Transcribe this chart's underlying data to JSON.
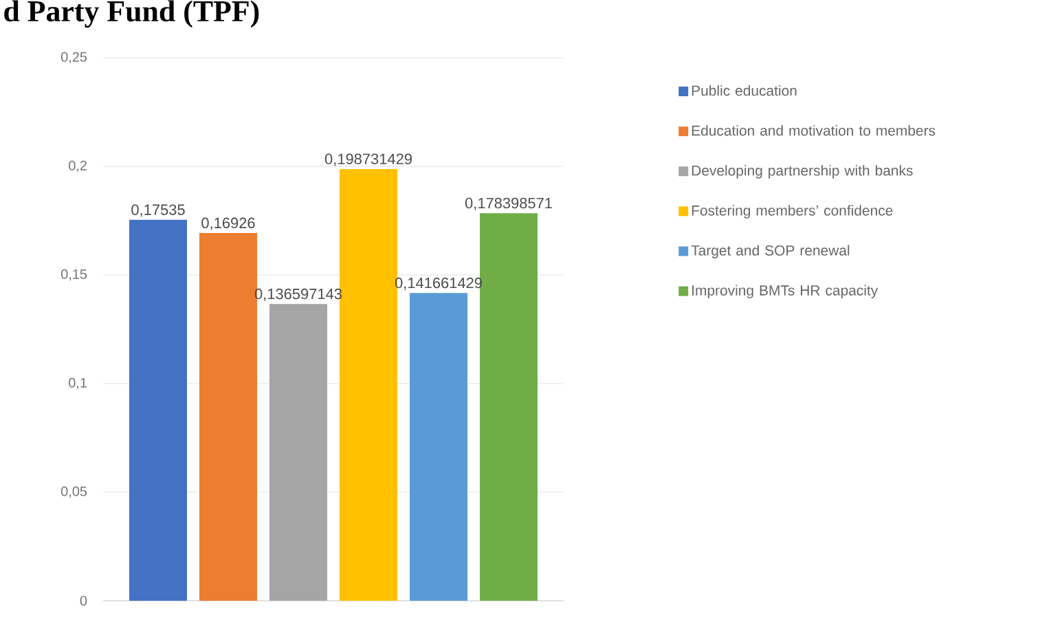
{
  "chart_data": {
    "type": "bar",
    "title": "d Party Fund (TPF)",
    "categories": [
      null
    ],
    "series": [
      {
        "name": "Public education",
        "color": "#4472c4",
        "values": [
          0.17535
        ],
        "value_labels": [
          "0,17535"
        ]
      },
      {
        "name": "Education and motivation to members",
        "color": "#ed7d31",
        "values": [
          0.16926
        ],
        "value_labels": [
          "0,16926"
        ]
      },
      {
        "name": "Developing partnership with banks",
        "color": "#a5a5a5",
        "values": [
          0.136597143
        ],
        "value_labels": [
          "0,136597143"
        ]
      },
      {
        "name": "Fostering members’ confidence",
        "color": "#ffc000",
        "values": [
          0.198731429
        ],
        "value_labels": [
          "0,198731429"
        ]
      },
      {
        "name": "Target and SOP renewal",
        "color": "#5b9bd5",
        "values": [
          0.141661429
        ],
        "value_labels": [
          "0,141661429"
        ]
      },
      {
        "name": "Improving BMTs HR capacity",
        "color": "#70ad47",
        "values": [
          0.178398571
        ],
        "value_labels": [
          "0,178398571"
        ]
      }
    ],
    "ylim": [
      0,
      0.25
    ],
    "yticks": [
      {
        "value": 0,
        "label": "0"
      },
      {
        "value": 0.05,
        "label": "0,05"
      },
      {
        "value": 0.1,
        "label": "0,1"
      },
      {
        "value": 0.15,
        "label": "0,15"
      },
      {
        "value": 0.2,
        "label": "0,2"
      },
      {
        "value": 0.25,
        "label": "0,25"
      }
    ],
    "grid": "y",
    "legend": "right"
  }
}
